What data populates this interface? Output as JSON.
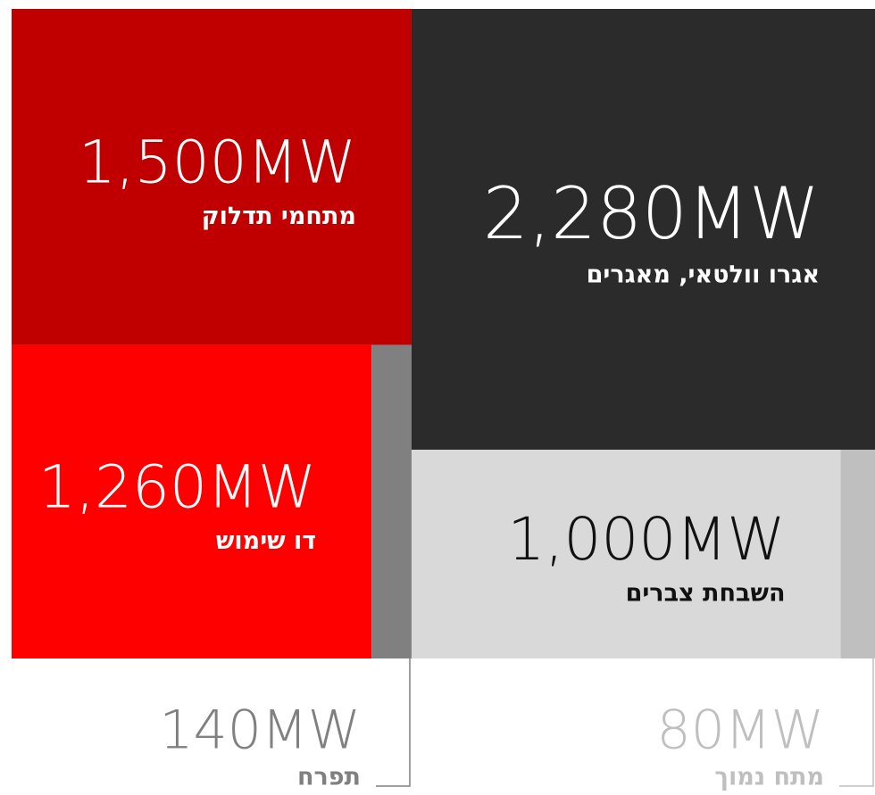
{
  "chart_data": {
    "type": "treemap",
    "categories": [
      "מתחמי תדלוק",
      "דו שימוש",
      "תפרח",
      "אגרו וולטאי, מאגרים",
      "השבחת צברים",
      "מתח נמוך"
    ],
    "values": [
      1500,
      1260,
      140,
      2280,
      1000,
      80
    ],
    "value_labels": [
      "1,500MW",
      "1,260MW",
      "140MW",
      "2,280MW",
      "1,000MW",
      "80MW"
    ],
    "colors": [
      "#c00000",
      "#ff0000",
      "#808080",
      "#2b2b2b",
      "#d9d9d9",
      "#bfbfbf"
    ]
  }
}
